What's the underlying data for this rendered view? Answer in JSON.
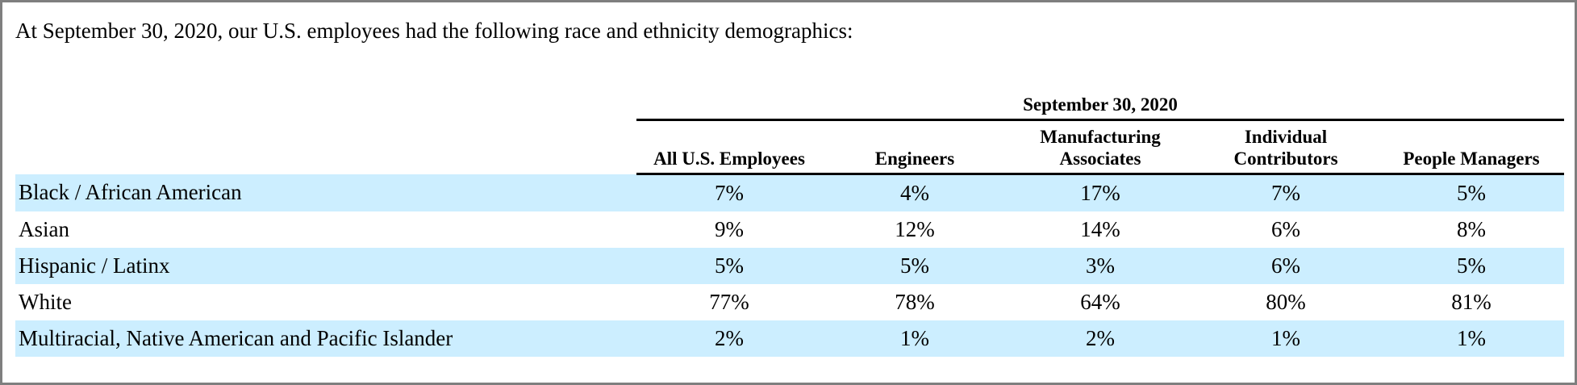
{
  "intro": "At September 30, 2020, our U.S. employees had the following race and ethnicity demographics:",
  "table": {
    "group_header": "September 30, 2020",
    "columns": [
      {
        "line1": "",
        "line2": "All U.S. Employees"
      },
      {
        "line1": "",
        "line2": "Engineers"
      },
      {
        "line1": "Manufacturing",
        "line2": "Associates"
      },
      {
        "line1": "Individual",
        "line2": "Contributors"
      },
      {
        "line1": "",
        "line2": "People Managers"
      }
    ],
    "rows": [
      {
        "label": "Black / African American",
        "values": [
          "7%",
          "4%",
          "17%",
          "7%",
          "5%"
        ]
      },
      {
        "label": "Asian",
        "values": [
          "9%",
          "12%",
          "14%",
          "6%",
          "8%"
        ]
      },
      {
        "label": "Hispanic / Latinx",
        "values": [
          "5%",
          "5%",
          "3%",
          "6%",
          "5%"
        ]
      },
      {
        "label": "White",
        "values": [
          "77%",
          "78%",
          "64%",
          "80%",
          "81%"
        ]
      },
      {
        "label": "Multiracial, Native American and Pacific Islander",
        "values": [
          "2%",
          "1%",
          "2%",
          "1%",
          "1%"
        ]
      }
    ]
  },
  "colors": {
    "row_shade": "#cceeff",
    "frame_border": "#7f7f7f",
    "rule": "#000000"
  }
}
